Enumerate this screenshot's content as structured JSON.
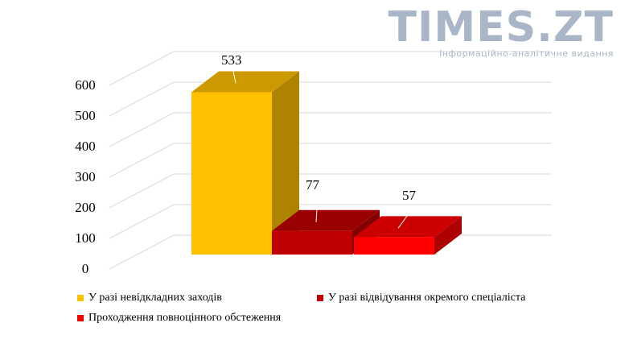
{
  "watermark": {
    "title": "TIMES.ZT",
    "subtitle": "Інформаційно-аналітичне видання"
  },
  "chart_data": {
    "type": "bar",
    "three_d": true,
    "categories": [
      "У разі невідкладних заходів",
      "У разі відвідування окремого спеціаліста",
      "Проходження повноцінного обстеження"
    ],
    "values": [
      533,
      77,
      57
    ],
    "data_labels": [
      "533",
      "77",
      "57"
    ],
    "colors": [
      "#ffc000",
      "#c00000",
      "#ff0000"
    ],
    "ylim": [
      0,
      600
    ],
    "yticks": [
      "0",
      "100",
      "200",
      "300",
      "400",
      "500",
      "600"
    ],
    "grid": true,
    "legend_position": "bottom"
  }
}
